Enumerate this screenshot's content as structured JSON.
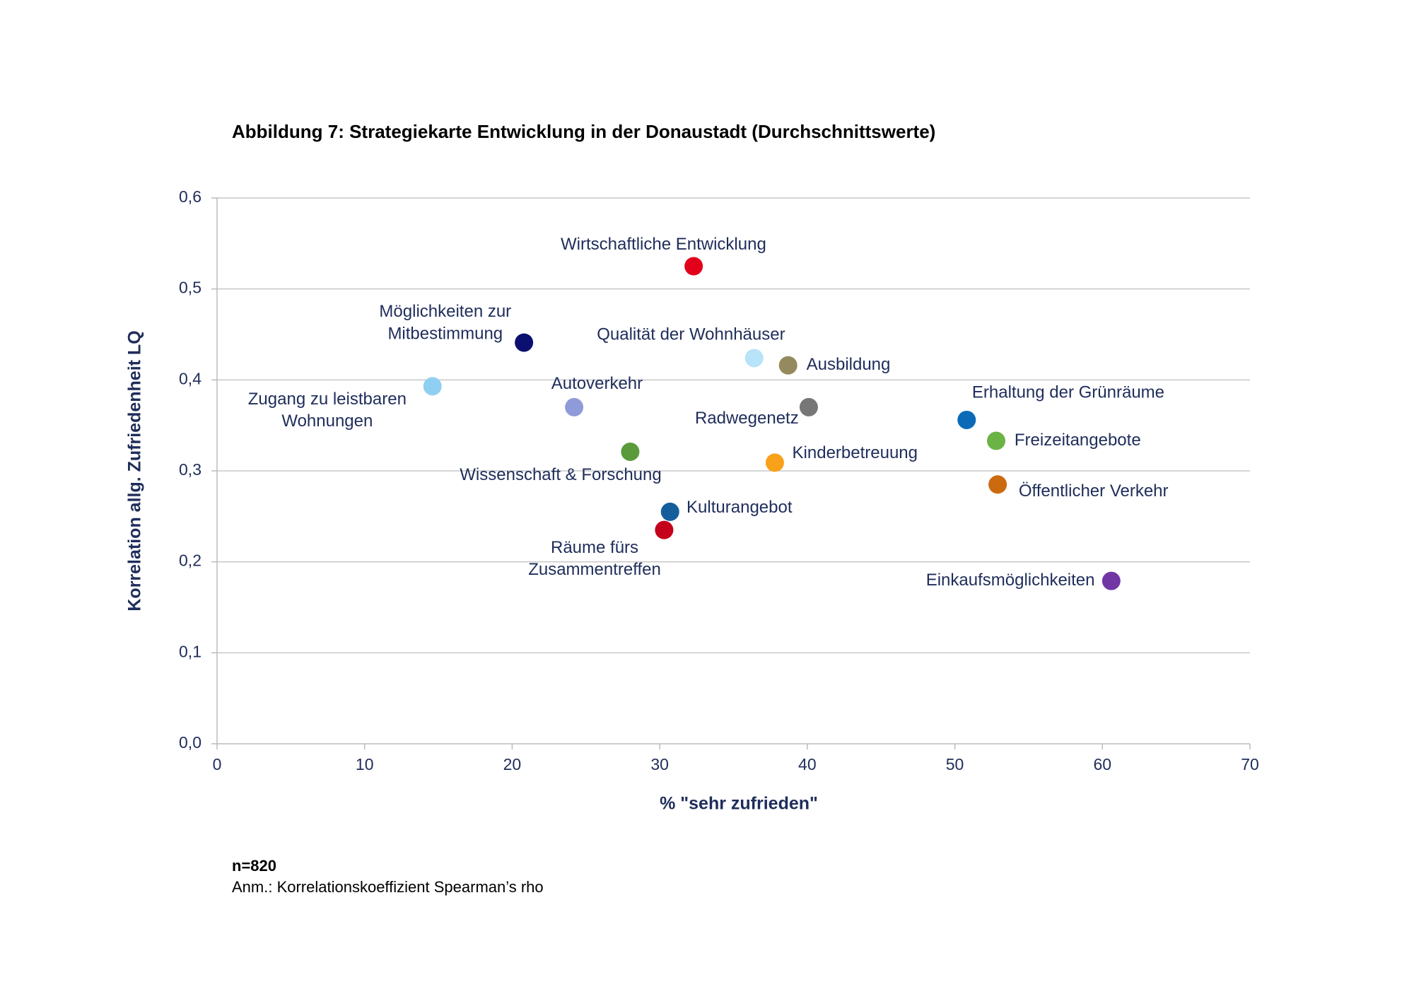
{
  "chart_data": {
    "type": "scatter",
    "title": "Abbildung 7: Strategiekarte Entwicklung in der Donaustadt (Durchschnittswerte)",
    "x_label": "% \"sehr zufrieden\"",
    "y_label": "Korrelation allg. Zufriedenheit LQ",
    "xlim": [
      0,
      70
    ],
    "xticks": [
      0,
      10,
      20,
      30,
      40,
      50,
      60,
      70
    ],
    "ylim": [
      0,
      0.6
    ],
    "yticks": [
      {
        "value": 0,
        "label": "0,0"
      },
      {
        "value": 0.1,
        "label": "0,1"
      },
      {
        "value": 0.2,
        "label": "0,2"
      },
      {
        "value": 0.3,
        "label": "0,3"
      },
      {
        "value": 0.4,
        "label": "0,4"
      },
      {
        "value": 0.5,
        "label": "0,5"
      },
      {
        "value": 0.6,
        "label": "0,6"
      }
    ],
    "grid": true,
    "points": [
      {
        "label": [
          "Wirtschaftliche Entwicklung"
        ],
        "color": "#e3001b",
        "x": 32.3,
        "y": 0.525
      },
      {
        "label": [
          "Möglichkeiten zur",
          "Mitbestimmung"
        ],
        "color": "#0b0f6f",
        "x": 20.8,
        "y": 0.441
      },
      {
        "label": [
          "Qualität der Wohnhäuser"
        ],
        "color": "#b8e3f8",
        "x": 36.4,
        "y": 0.424
      },
      {
        "label": [
          "Ausbildung"
        ],
        "color": "#958a5e",
        "x": 38.7,
        "y": 0.416
      },
      {
        "label": [
          "Zugang zu leistbaren",
          "Wohnungen"
        ],
        "color": "#8fd0f2",
        "x": 14.6,
        "y": 0.393
      },
      {
        "label": [
          "Autoverkehr"
        ],
        "color": "#8f9bd9",
        "x": 24.2,
        "y": 0.37
      },
      {
        "label": [
          "Radwegenetz"
        ],
        "color": "#777777",
        "x": 40.1,
        "y": 0.37
      },
      {
        "label": [
          "Erhaltung der Grünräume"
        ],
        "color": "#0a6ab8",
        "x": 50.8,
        "y": 0.356
      },
      {
        "label": [
          "Freizeitangebote"
        ],
        "color": "#6ab344",
        "x": 52.8,
        "y": 0.333
      },
      {
        "label": [
          "Wissenschaft & Forschung"
        ],
        "color": "#5a9a3a",
        "x": 28.0,
        "y": 0.321
      },
      {
        "label": [
          "Kinderbetreuung"
        ],
        "color": "#f9a11b",
        "x": 37.8,
        "y": 0.309
      },
      {
        "label": [
          "Öffentlicher Verkehr"
        ],
        "color": "#cc6a10",
        "x": 52.9,
        "y": 0.285
      },
      {
        "label": [
          "Kulturangebot"
        ],
        "color": "#155e9c",
        "x": 30.7,
        "y": 0.255
      },
      {
        "label": [
          "Räume fürs",
          "Zusammentreffen"
        ],
        "color": "#c4001a",
        "x": 30.3,
        "y": 0.235
      },
      {
        "label": [
          "Einkaufsmöglichkeiten"
        ],
        "color": "#7136a4",
        "x": 60.6,
        "y": 0.179
      }
    ],
    "notes": [
      "n=820",
      "Anm.: Korrelationskoeffizient Spearman’s rho"
    ]
  }
}
